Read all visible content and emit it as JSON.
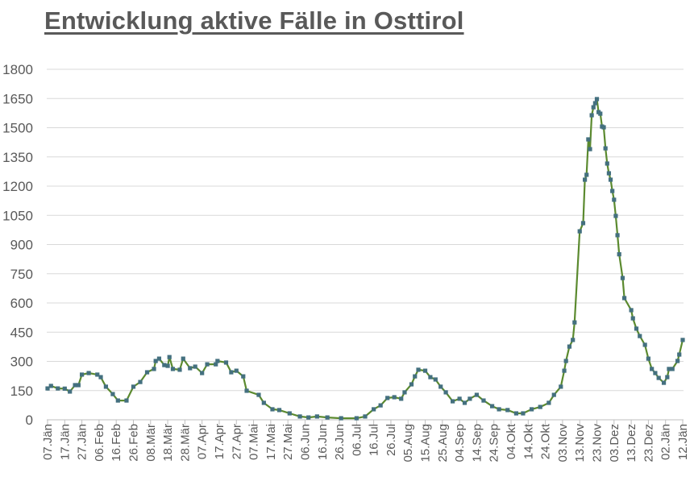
{
  "chart_data": {
    "type": "line",
    "title": "Entwicklung aktive Fälle in Osttirol",
    "xlabel": "",
    "ylabel": "",
    "ylim": [
      0,
      1800
    ],
    "yticks": [
      0,
      150,
      300,
      450,
      600,
      750,
      900,
      1050,
      1200,
      1350,
      1500,
      1650,
      1800
    ],
    "xticks": [
      "07.Jän",
      "17.Jän",
      "27.Jän",
      "06.Feb",
      "16.Feb",
      "26.Feb",
      "08.Mär",
      "18.Mär",
      "28.Mär",
      "07.Apr",
      "17.Apr",
      "27.Apr",
      "07.Mai",
      "17.Mai",
      "27.Mai",
      "06.Jun",
      "16.Jun",
      "26.Jun",
      "06.Jul",
      "16.Jul",
      "26.Jul",
      "05.Aug",
      "15.Aug",
      "25.Aug",
      "04.Sep",
      "14.Sep",
      "24.Sep",
      "04.Okt",
      "14.Okt",
      "24.Okt",
      "03.Nov",
      "13.Nov",
      "23.Nov",
      "03.Dez",
      "13.Dez",
      "23.Dez",
      "02.Jän",
      "12.Jän"
    ],
    "grid": true,
    "legend": "none",
    "colors": {
      "line": "#5b8a2f",
      "marker": "#44707f",
      "grid": "#d9d9d9",
      "text": "#595959"
    },
    "series": [
      {
        "points": [
          [
            "07.Jän",
            161
          ],
          [
            "09.Jän",
            174
          ],
          [
            "13.Jän",
            161
          ],
          [
            "17.Jän",
            160
          ],
          [
            "20.Jän",
            145
          ],
          [
            "23.Jän",
            178
          ],
          [
            "25.Jän",
            178
          ],
          [
            "27.Jän",
            232
          ],
          [
            "31.Jän",
            240
          ],
          [
            "05.Feb",
            232
          ],
          [
            "07.Feb",
            219
          ],
          [
            "10.Feb",
            170
          ],
          [
            "14.Feb",
            132
          ],
          [
            "17.Feb",
            99
          ],
          [
            "22.Feb",
            99
          ],
          [
            "26.Feb",
            170
          ],
          [
            "02.Mär",
            194
          ],
          [
            "06.Mär",
            244
          ],
          [
            "10.Mär",
            261
          ],
          [
            "11.Mär",
            302
          ],
          [
            "13.Mär",
            314
          ],
          [
            "16.Mär",
            281
          ],
          [
            "18.Mär",
            277
          ],
          [
            "19.Mär",
            322
          ],
          [
            "21.Mär",
            261
          ],
          [
            "25.Mär",
            257
          ],
          [
            "27.Mär",
            314
          ],
          [
            "31.Mär",
            265
          ],
          [
            "03.Apr",
            273
          ],
          [
            "07.Apr",
            240
          ],
          [
            "10.Apr",
            285
          ],
          [
            "15.Apr",
            285
          ],
          [
            "16.Apr",
            302
          ],
          [
            "21.Apr",
            294
          ],
          [
            "24.Apr",
            244
          ],
          [
            "27.Apr",
            252
          ],
          [
            "01.Mai",
            223
          ],
          [
            "03.Mai",
            149
          ],
          [
            "10.Mai",
            128
          ],
          [
            "13.Mai",
            87
          ],
          [
            "18.Mai",
            54
          ],
          [
            "22.Mai",
            50
          ],
          [
            "28.Mai",
            33
          ],
          [
            "03.Jun",
            17
          ],
          [
            "08.Jun",
            12
          ],
          [
            "13.Jun",
            17
          ],
          [
            "19.Jun",
            12
          ],
          [
            "27.Jun",
            8
          ],
          [
            "06.Jul",
            8
          ],
          [
            "11.Jul",
            17
          ],
          [
            "16.Jul",
            54
          ],
          [
            "20.Jul",
            74
          ],
          [
            "24.Jul",
            112
          ],
          [
            "28.Jul",
            116
          ],
          [
            "01.Aug",
            108
          ],
          [
            "03.Aug",
            141
          ],
          [
            "07.Aug",
            182
          ],
          [
            "09.Aug",
            223
          ],
          [
            "11.Aug",
            257
          ],
          [
            "15.Aug",
            252
          ],
          [
            "18.Aug",
            219
          ],
          [
            "21.Aug",
            207
          ],
          [
            "24.Aug",
            170
          ],
          [
            "27.Aug",
            141
          ],
          [
            "31.Aug",
            95
          ],
          [
            "04.Sep",
            108
          ],
          [
            "07.Sep",
            87
          ],
          [
            "10.Sep",
            108
          ],
          [
            "14.Sep",
            128
          ],
          [
            "18.Sep",
            99
          ],
          [
            "23.Sep",
            70
          ],
          [
            "27.Sep",
            54
          ],
          [
            "02.Okt",
            50
          ],
          [
            "07.Okt",
            33
          ],
          [
            "11.Okt",
            33
          ],
          [
            "16.Okt",
            54
          ],
          [
            "21.Okt",
            66
          ],
          [
            "26.Okt",
            87
          ],
          [
            "29.Okt",
            128
          ],
          [
            "02.Nov",
            170
          ],
          [
            "04.Nov",
            252
          ],
          [
            "05.Nov",
            302
          ],
          [
            "07.Nov",
            376
          ],
          [
            "09.Nov",
            410
          ],
          [
            "10.Nov",
            500
          ],
          [
            "13.Nov",
            968
          ],
          [
            "15.Nov",
            1010
          ],
          [
            "16.Nov",
            1233
          ],
          [
            "17.Nov",
            1258
          ],
          [
            "18.Nov",
            1440
          ],
          [
            "19.Nov",
            1390
          ],
          [
            "20.Nov",
            1564
          ],
          [
            "21.Nov",
            1605
          ],
          [
            "22.Nov",
            1626
          ],
          [
            "23.Nov",
            1647
          ],
          [
            "24.Nov",
            1580
          ],
          [
            "25.Nov",
            1572
          ],
          [
            "26.Nov",
            1506
          ],
          [
            "27.Nov",
            1502
          ],
          [
            "28.Nov",
            1394
          ],
          [
            "29.Nov",
            1316
          ],
          [
            "30.Nov",
            1266
          ],
          [
            "01.Dez",
            1233
          ],
          [
            "02.Dez",
            1175
          ],
          [
            "03.Dez",
            1130
          ],
          [
            "04.Dez",
            1047
          ],
          [
            "05.Dez",
            948
          ],
          [
            "06.Dez",
            850
          ],
          [
            "08.Dez",
            728
          ],
          [
            "09.Dez",
            625
          ],
          [
            "13.Dez",
            563
          ],
          [
            "14.Dez",
            521
          ],
          [
            "16.Dez",
            468
          ],
          [
            "18.Dez",
            430
          ],
          [
            "21.Dez",
            385
          ],
          [
            "23.Dez",
            314
          ],
          [
            "25.Dez",
            261
          ],
          [
            "27.Dez",
            240
          ],
          [
            "29.Dez",
            215
          ],
          [
            "01.Jän",
            190
          ],
          [
            "03.Jän",
            219
          ],
          [
            "04.Jän",
            261
          ],
          [
            "06.Jän",
            261
          ],
          [
            "09.Jän",
            302
          ],
          [
            "10.Jän",
            335
          ],
          [
            "12.Jän",
            410
          ]
        ]
      }
    ]
  }
}
